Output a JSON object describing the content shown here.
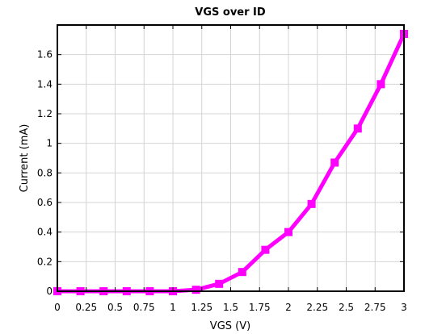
{
  "chart_data": {
    "type": "line",
    "title": "VGS over ID",
    "xlabel": "VGS (V)",
    "ylabel": "Current (mA)",
    "xlim": [
      0,
      3
    ],
    "ylim": [
      0,
      1.8
    ],
    "xticks": [
      0,
      0.25,
      0.5,
      0.75,
      1,
      1.25,
      1.5,
      1.75,
      2,
      2.25,
      2.5,
      2.75,
      3
    ],
    "xtick_labels": [
      "0",
      "0.25",
      "0.5",
      "0.75",
      "1",
      "1.25",
      "1.5",
      "1.75",
      "2",
      "2.25",
      "2.5",
      "2.75",
      "3"
    ],
    "yticks": [
      0,
      0.2,
      0.4,
      0.6,
      0.8,
      1,
      1.2,
      1.4,
      1.6
    ],
    "ytick_labels": [
      "0",
      "0.2",
      "0.4",
      "0.6",
      "0.8",
      "1",
      "1.2",
      "1.4",
      "1.6"
    ],
    "grid": true,
    "color": "#ff00ff",
    "marker": "square",
    "series": [
      {
        "x": [
          0,
          0.2,
          0.4,
          0.6,
          0.8,
          1.0,
          1.2,
          1.4,
          1.6,
          1.8,
          2.0,
          2.2,
          2.4,
          2.6,
          2.8,
          3.0
        ],
        "values": [
          0,
          0,
          0,
          0,
          0,
          0,
          0.01,
          0.05,
          0.13,
          0.28,
          0.4,
          0.59,
          0.87,
          1.1,
          1.4,
          1.74
        ]
      }
    ]
  }
}
